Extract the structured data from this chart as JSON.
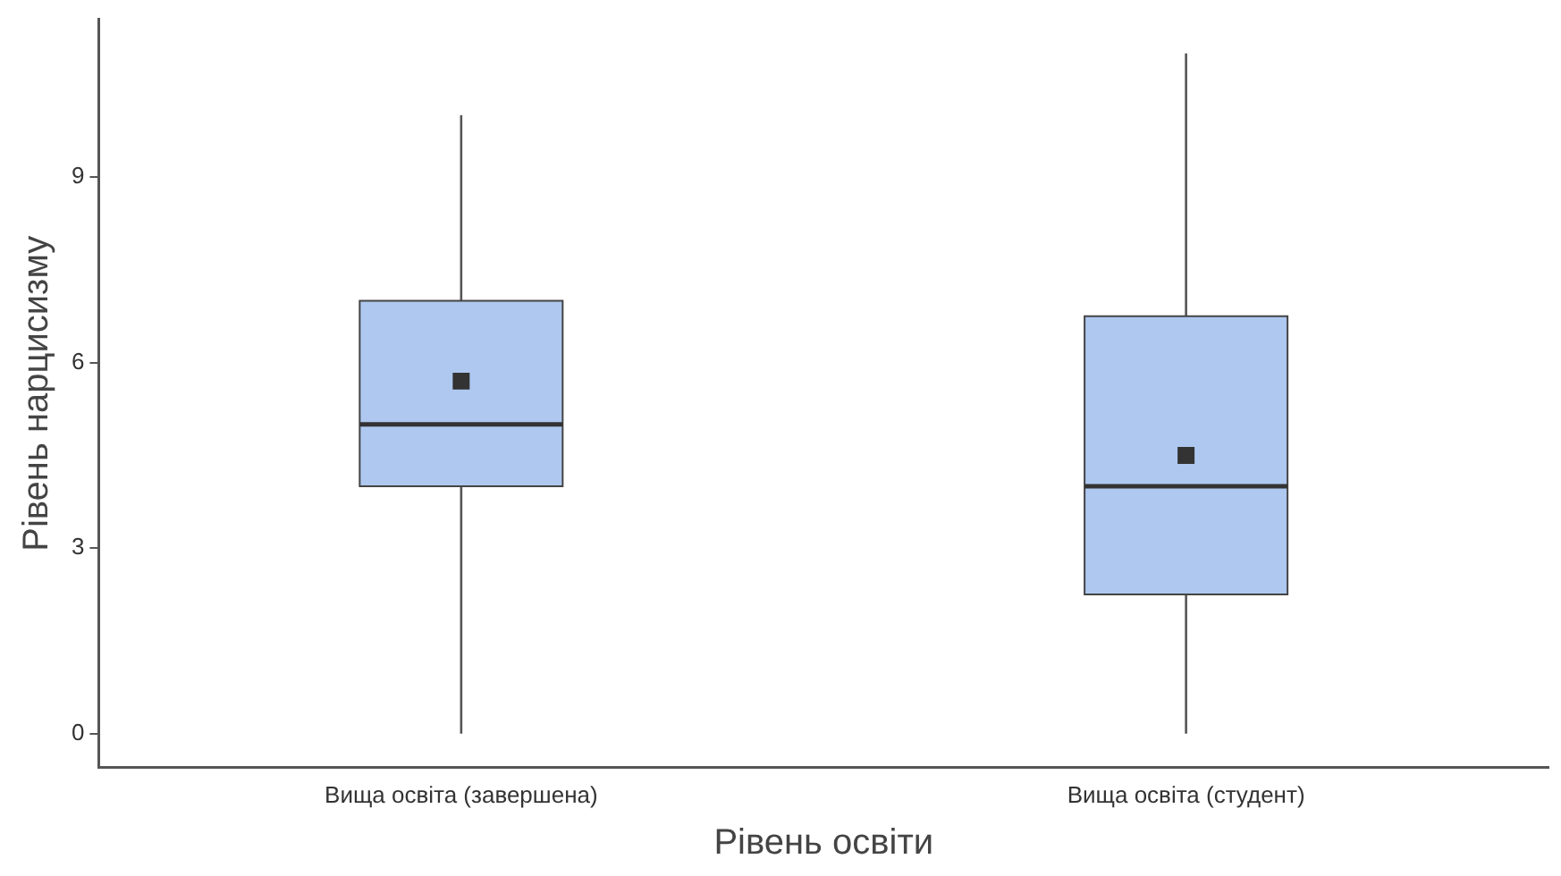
{
  "chart_data": {
    "type": "box",
    "xlabel": "Рівень освіти",
    "ylabel": "Рівень нарцисизму",
    "categories": [
      "Вища освіта (завершена)",
      "Вища освіта (студент)"
    ],
    "boxes": [
      {
        "low": 0,
        "q1": 4,
        "median": 5,
        "q3": 7,
        "high": 10,
        "mean": 5.7
      },
      {
        "low": 0,
        "q1": 2.25,
        "median": 4,
        "q3": 6.75,
        "high": 11,
        "mean": 4.5
      }
    ],
    "color": "#aec8f0",
    "marker": "square",
    "ylim": [
      -0.55,
      11.55
    ],
    "yticks": [
      0,
      3,
      6,
      9
    ]
  }
}
